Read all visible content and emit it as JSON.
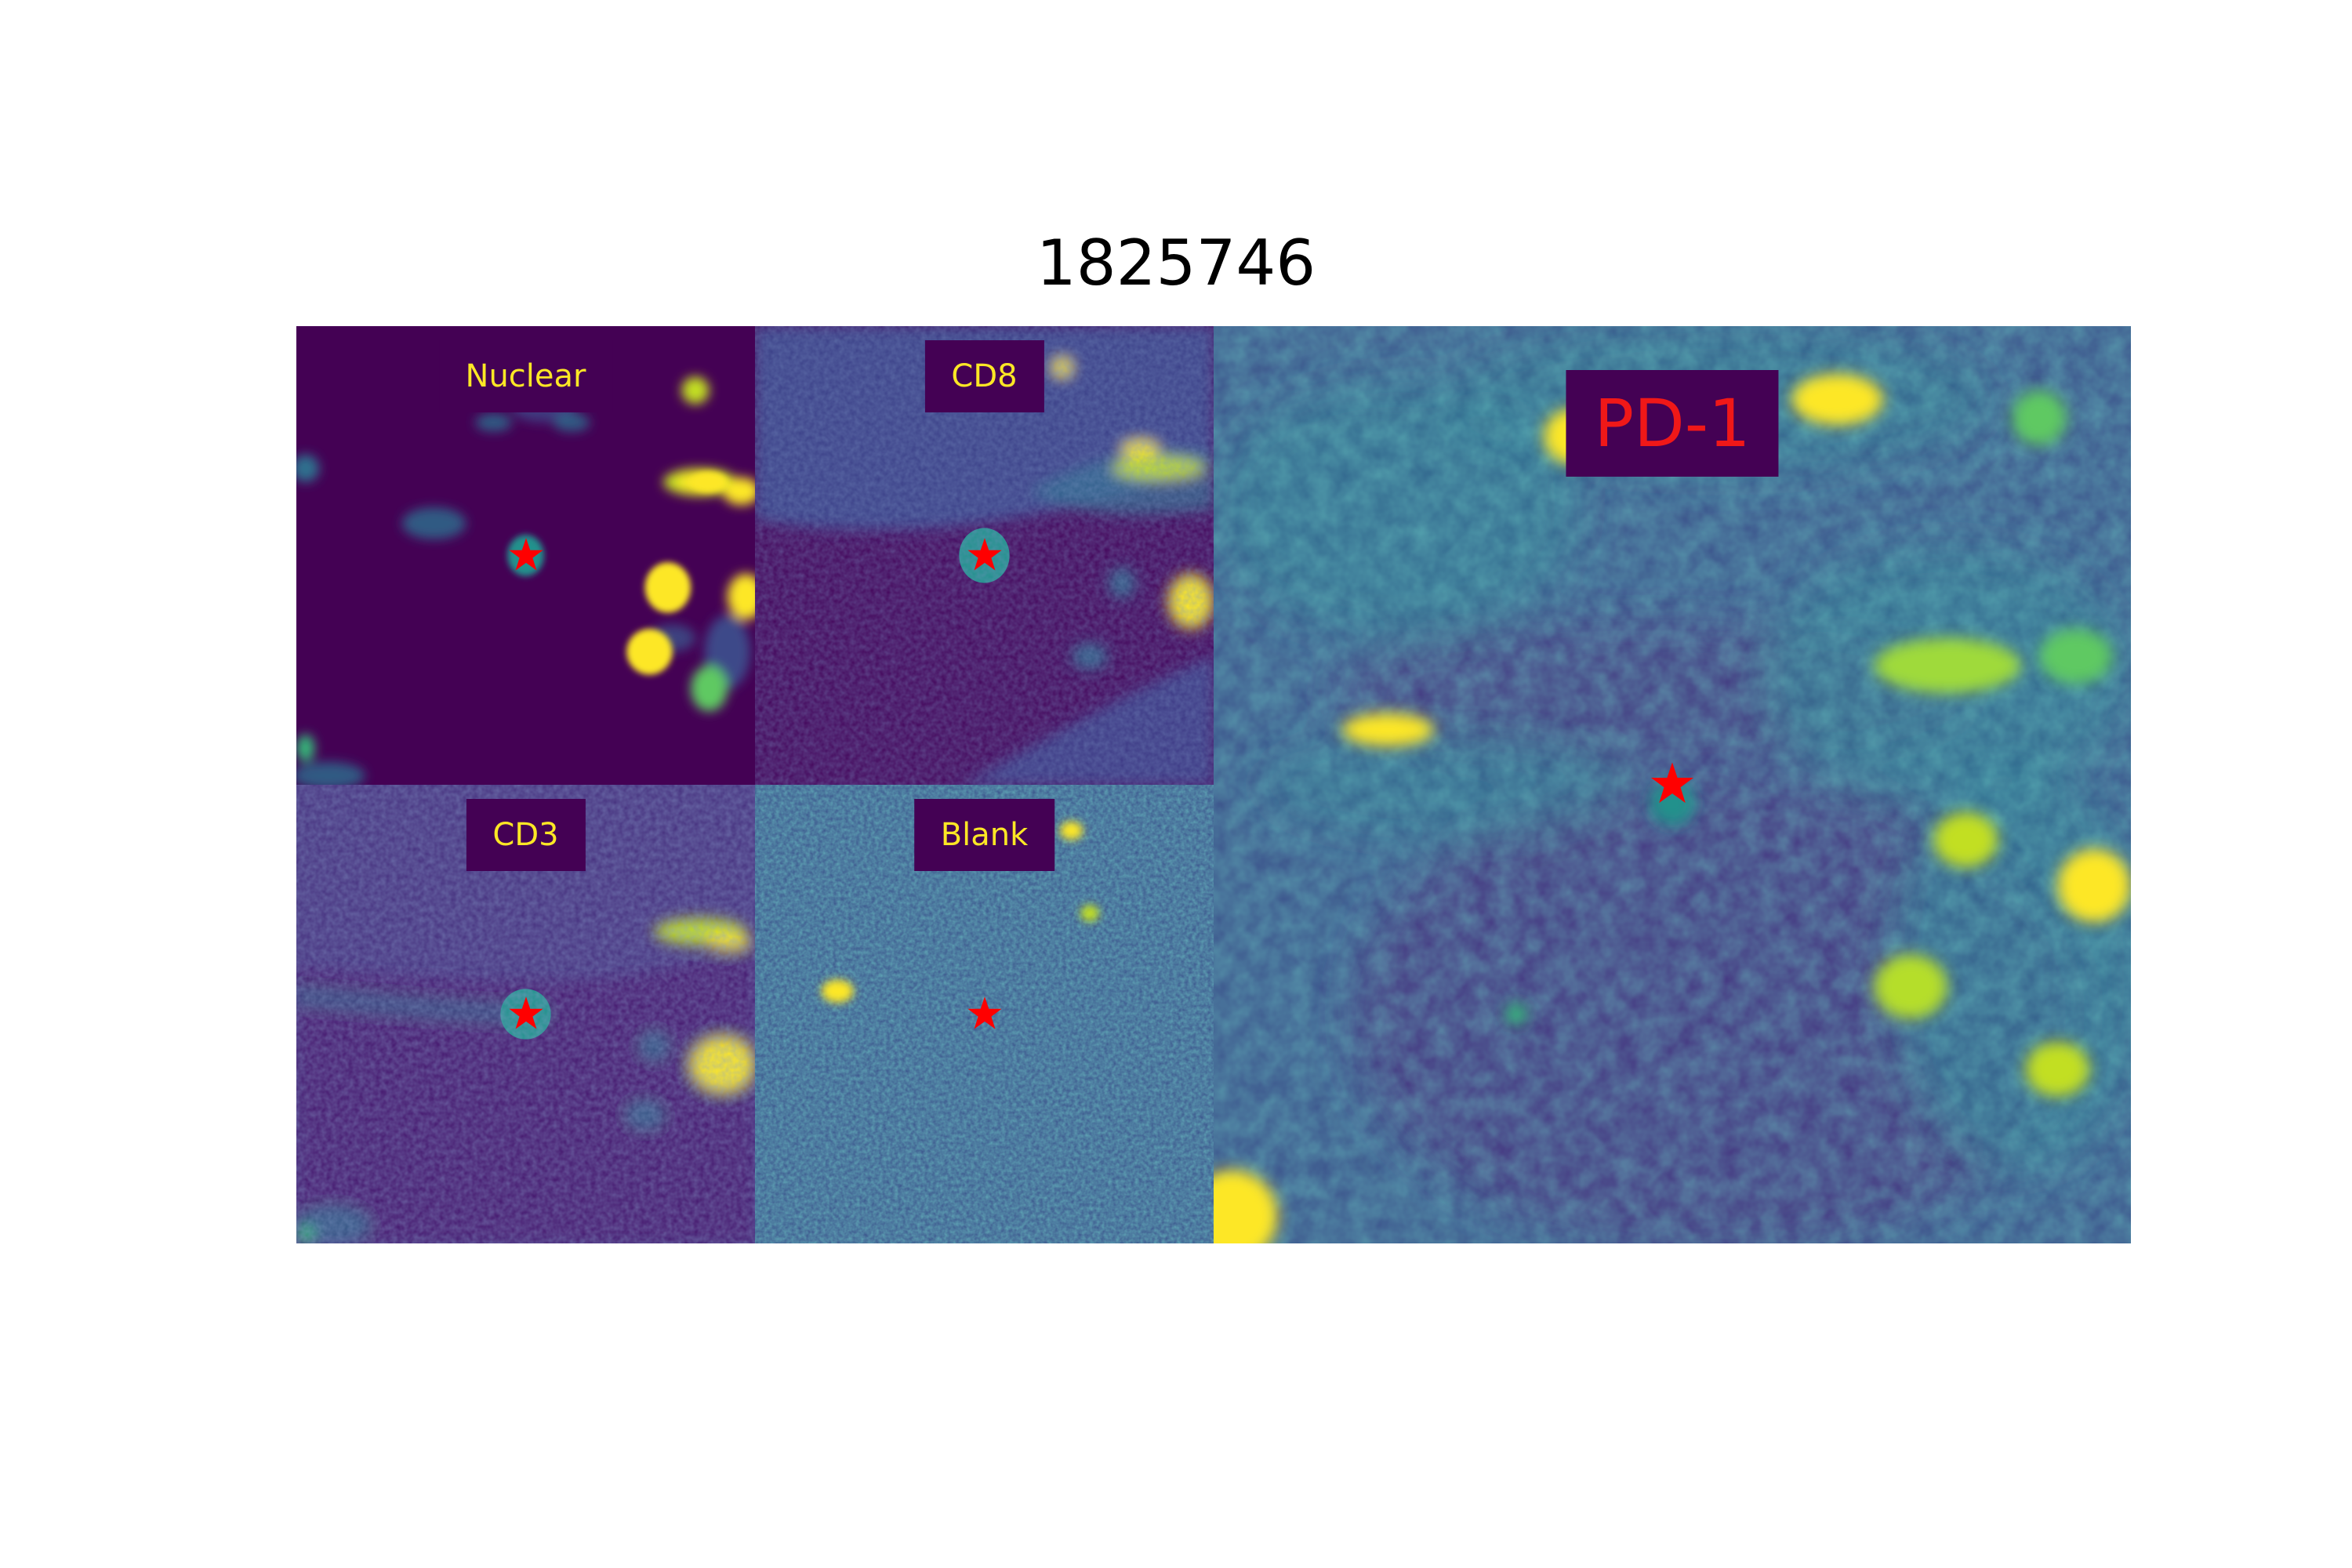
{
  "figure": {
    "title": "1825746"
  },
  "colors": {
    "background": "#ffffff",
    "label_box": "#440154",
    "small_label_text": "#fde725",
    "large_label_text": "#f01818",
    "marker": "#ff0000",
    "colormap": "viridis"
  },
  "panels": [
    {
      "label": "Nuclear"
    },
    {
      "label": "CD8"
    },
    {
      "label": "CD3"
    },
    {
      "label": "Blank"
    },
    {
      "label": "PD-1"
    }
  ],
  "marker": {
    "shape": "star-icon"
  }
}
